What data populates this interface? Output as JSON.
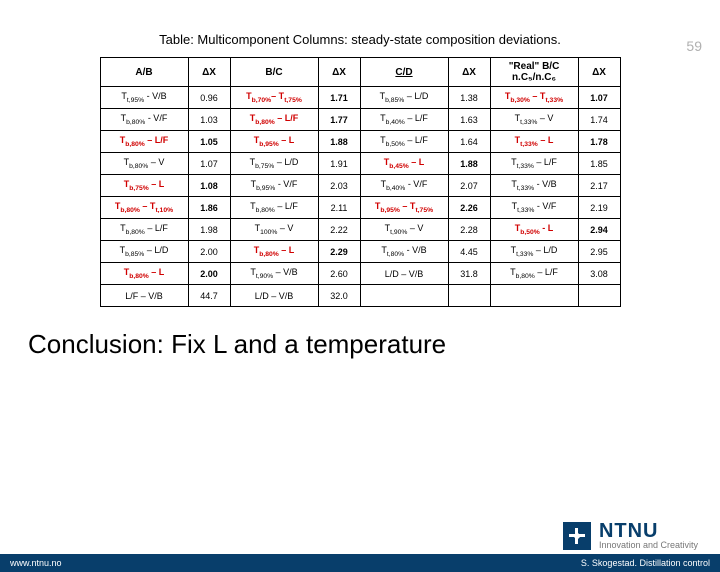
{
  "page_number": "59",
  "table_caption": "Table: Multicomponent Columns: steady-state composition deviations.",
  "headers": {
    "ab": "A/B",
    "dx1": "ΔX",
    "bc": "B/C",
    "dx2": "ΔX",
    "cd": "C/D",
    "dx3": "ΔX",
    "real": "\"Real\" B/C n.C₅/n.C₆",
    "dx4": "ΔX"
  },
  "rows": [
    {
      "c0": {
        "t": "T<sub>t,95%</sub> - V/B"
      },
      "c1": {
        "t": "0.96"
      },
      "c2": {
        "t": "T<sub>b,70%</sub>– T<sub>t,75%</sub>",
        "red": 1
      },
      "c3": {
        "t": "1.71",
        "b": 1
      },
      "c4": {
        "t": "T<sub>b,85%</sub> – L/D"
      },
      "c5": {
        "t": "1.38"
      },
      "c6": {
        "t": "T<sub>b,30%</sub> – T<sub>t,33%</sub>",
        "red": 1
      },
      "c7": {
        "t": "1.07",
        "b": 1
      }
    },
    {
      "c0": {
        "t": "T<sub>b,80%</sub> - V/F"
      },
      "c1": {
        "t": "1.03"
      },
      "c2": {
        "t": "T<sub>b,80%</sub> – L/F",
        "red": 1
      },
      "c3": {
        "t": "1.77",
        "b": 1
      },
      "c4": {
        "t": "T<sub>b,40%</sub> – L/F"
      },
      "c5": {
        "t": "1.63"
      },
      "c6": {
        "t": "T<sub>t,33%</sub> – V"
      },
      "c7": {
        "t": "1.74"
      }
    },
    {
      "c0": {
        "t": "T<sub>b,80%</sub> – L/F",
        "red": 1
      },
      "c1": {
        "t": "1.05",
        "b": 1
      },
      "c2": {
        "t": "T<sub>b,95%</sub> – L",
        "red": 1
      },
      "c3": {
        "t": "1.88",
        "b": 1
      },
      "c4": {
        "t": "T<sub>b,50%</sub> – L/F"
      },
      "c5": {
        "t": "1.64"
      },
      "c6": {
        "t": "T<sub>t,33%</sub> – L",
        "red": 1
      },
      "c7": {
        "t": "1.78",
        "b": 1
      }
    },
    {
      "c0": {
        "t": "T<sub>b,80%</sub> – V"
      },
      "c1": {
        "t": "1.07"
      },
      "c2": {
        "t": "T<sub>b,75%</sub> – L/D"
      },
      "c3": {
        "t": "1.91"
      },
      "c4": {
        "t": "T<sub>b,45%</sub> – L",
        "red": 1
      },
      "c5": {
        "t": "1.88",
        "b": 1
      },
      "c6": {
        "t": "T<sub>t,33%</sub> – L/F"
      },
      "c7": {
        "t": "1.85"
      }
    },
    {
      "c0": {
        "t": "T<sub>b,75%</sub> – L",
        "red": 1
      },
      "c1": {
        "t": "1.08",
        "b": 1
      },
      "c2": {
        "t": "T<sub>b,95%</sub> - V/F"
      },
      "c3": {
        "t": "2.03"
      },
      "c4": {
        "t": "T<sub>b,40%</sub> - V/F"
      },
      "c5": {
        "t": "2.07"
      },
      "c6": {
        "t": "T<sub>t,33%</sub> - V/B"
      },
      "c7": {
        "t": "2.17"
      }
    },
    {
      "c0": {
        "t": "T<sub>b,80%</sub> – T<sub>t,10%</sub>",
        "red": 1
      },
      "c1": {
        "t": "1.86",
        "b": 1
      },
      "c2": {
        "t": "T<sub>b,80%</sub> – L/F"
      },
      "c3": {
        "t": "2.11"
      },
      "c4": {
        "t": "T<sub>b,95%</sub> – T<sub>t,75%</sub>",
        "red": 1
      },
      "c5": {
        "t": "2.26",
        "b": 1
      },
      "c6": {
        "t": "T<sub>t,33%</sub> - V/F"
      },
      "c7": {
        "t": "2.19"
      }
    },
    {
      "c0": {
        "t": "T<sub>b,80%</sub> – L/F"
      },
      "c1": {
        "t": "1.98"
      },
      "c2": {
        "t": "T<sub>100%</sub> – V"
      },
      "c3": {
        "t": "2.22"
      },
      "c4": {
        "t": "T<sub>t,90%</sub> – V"
      },
      "c5": {
        "t": "2.28"
      },
      "c6": {
        "t": "T<sub>b,50%</sub> - L",
        "red": 1
      },
      "c7": {
        "t": "2.94",
        "b": 1
      }
    },
    {
      "c0": {
        "t": "T<sub>b,85%</sub> – L/D"
      },
      "c1": {
        "t": "2.00"
      },
      "c2": {
        "t": "T<sub>b,80%</sub> – L",
        "red": 1
      },
      "c3": {
        "t": "2.29",
        "b": 1
      },
      "c4": {
        "t": "T<sub>t,80%</sub> - V/B"
      },
      "c5": {
        "t": "4.45"
      },
      "c6": {
        "t": "T<sub>t,33%</sub> – L/D"
      },
      "c7": {
        "t": "2.95"
      }
    },
    {
      "c0": {
        "t": "T<sub>b,80%</sub> – L",
        "red": 1
      },
      "c1": {
        "t": "2.00",
        "b": 1
      },
      "c2": {
        "t": "T<sub>t,90%</sub> – V/B"
      },
      "c3": {
        "t": "2.60"
      },
      "c4": {
        "t": "L/D – V/B"
      },
      "c5": {
        "t": "31.8"
      },
      "c6": {
        "t": "T<sub>b,80%</sub> – L/F"
      },
      "c7": {
        "t": "3.08"
      }
    },
    {
      "c0": {
        "t": "L/F – V/B"
      },
      "c1": {
        "t": "44.7"
      },
      "c2": {
        "t": "L/D – V/B"
      },
      "c3": {
        "t": "32.0"
      },
      "c4": {
        "t": ""
      },
      "c5": {
        "t": ""
      },
      "c6": {
        "t": ""
      },
      "c7": {
        "t": ""
      }
    }
  ],
  "conclusion": "Conclusion: Fix L and a temperature",
  "footer_left": "www.ntnu.no",
  "footer_right": "S. Skogestad. Distillation control",
  "ntnu": {
    "name": "NTNU",
    "tag": "Innovation and Creativity"
  },
  "colors": {
    "red": "#d00000",
    "ntnu_blue": "#083e6b",
    "page_num_gray": "#b0b0b0",
    "tag_gray": "#777777"
  }
}
